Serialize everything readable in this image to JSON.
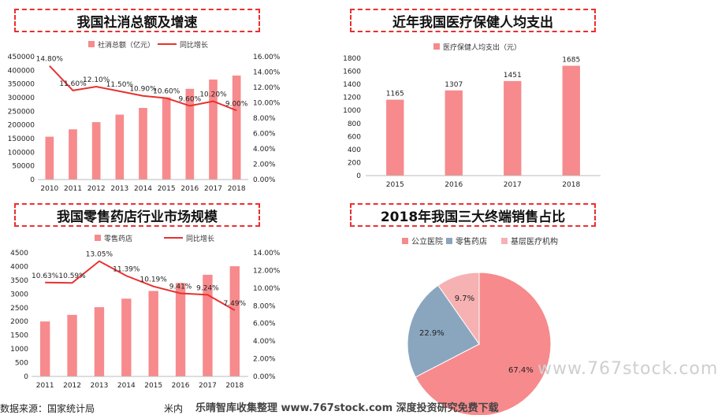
{
  "panels": {
    "p1_title": "我国社消总额及增速",
    "p2_title": "近年我国医疗保健人均支出",
    "p3_title": "我国零售药店行业市场规模",
    "p4_title": "2018年我国三大终端销售占比"
  },
  "footer": {
    "source_left": "数据来源：国家统计局",
    "source_mid": "米内",
    "watermark_bottom": "乐晴智库收集整理 www.767stock.com 深度投资研究免费下载",
    "watermark_side": "www.767stock.com"
  },
  "colors": {
    "bar": "#f78a8c",
    "line": "#e8312f",
    "pie_hospital": "#f78a8c",
    "pie_pharmacy": "#8aa6bf",
    "pie_grassroots": "#f6b1b2",
    "title_border": "#e8312f"
  },
  "chart_data": [
    {
      "type": "bar",
      "title": "我国社消总额及增速",
      "categories": [
        "2010",
        "2011",
        "2012",
        "2013",
        "2014",
        "2015",
        "2016",
        "2017",
        "2018"
      ],
      "series": [
        {
          "name": "社消总额（亿元）",
          "type": "bar",
          "axis": "left",
          "values": [
            156998,
            183919,
            210307,
            237810,
            262394,
            300931,
            332316,
            366262,
            380987
          ]
        },
        {
          "name": "同比增长",
          "type": "line",
          "axis": "right",
          "values": [
            14.8,
            11.6,
            12.1,
            11.5,
            10.9,
            10.6,
            9.6,
            10.2,
            9.0
          ],
          "labels": [
            "14.80%",
            "11.60%",
            "12.10%",
            "11.50%",
            "10.90%",
            "10.60%",
            "9.60%",
            "10.20%",
            "9.00%"
          ]
        }
      ],
      "left_ticks": [
        "0",
        "50000",
        "100000",
        "150000",
        "200000",
        "250000",
        "300000",
        "350000",
        "400000",
        "450000"
      ],
      "right_ticks": [
        "0.00%",
        "2.00%",
        "4.00%",
        "6.00%",
        "8.00%",
        "10.00%",
        "12.00%",
        "14.00%",
        "16.00%"
      ],
      "ylim_left": [
        0,
        450000
      ],
      "ylim_right": [
        0,
        16
      ],
      "legend": "top"
    },
    {
      "type": "bar",
      "title": "近年我国医疗保健人均支出",
      "categories": [
        "2015",
        "2016",
        "2017",
        "2018"
      ],
      "series": [
        {
          "name": "医疗保健人均支出（元）",
          "values": [
            1165,
            1307,
            1451,
            1685
          ],
          "labels": [
            "1165",
            "1307",
            "1451",
            "1685"
          ]
        }
      ],
      "y_ticks": [
        "0",
        "200",
        "400",
        "600",
        "800",
        "1000",
        "1200",
        "1400",
        "1600",
        "1800"
      ],
      "ylim": [
        0,
        1800
      ],
      "legend": "top"
    },
    {
      "type": "bar",
      "title": "我国零售药店行业市场规模",
      "categories": [
        "2011",
        "2012",
        "2013",
        "2014",
        "2015",
        "2016",
        "2017",
        "2018"
      ],
      "series": [
        {
          "name": "零售药店",
          "type": "bar",
          "axis": "left",
          "values": [
            2000,
            2240,
            2520,
            2830,
            3110,
            3400,
            3700,
            4010
          ]
        },
        {
          "name": "同比增长",
          "type": "line",
          "axis": "right",
          "values": [
            10.63,
            10.59,
            13.05,
            11.39,
            10.19,
            9.41,
            9.24,
            7.49
          ],
          "labels": [
            "10.63%",
            "10.59%",
            "13.05%",
            "11.39%",
            "10.19%",
            "9.41%",
            "9.24%",
            "7.49%"
          ]
        }
      ],
      "left_ticks": [
        "0",
        "500",
        "1000",
        "1500",
        "2000",
        "2500",
        "3000",
        "3500",
        "4000",
        "4500"
      ],
      "right_ticks": [
        "0.00%",
        "2.00%",
        "4.00%",
        "6.00%",
        "8.00%",
        "10.00%",
        "12.00%",
        "14.00%"
      ],
      "ylim_left": [
        0,
        4500
      ],
      "ylim_right": [
        0,
        14
      ],
      "legend": "top"
    },
    {
      "type": "pie",
      "title": "2018年我国三大终端销售占比",
      "labels": [
        "公立医院",
        "零售药店",
        "基层医疗机构"
      ],
      "values": [
        67.4,
        22.9,
        9.7
      ],
      "value_labels": [
        "67.4%",
        "22.9%",
        "9.7%"
      ],
      "legend": "top"
    }
  ]
}
